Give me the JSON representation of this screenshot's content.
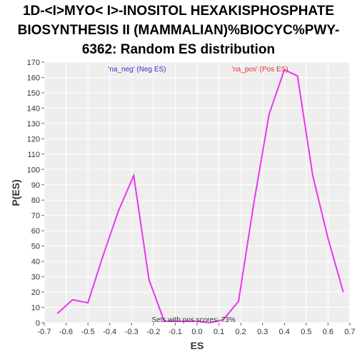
{
  "chart_data": {
    "type": "line",
    "title_lines": [
      "1D-<I>MYO< I>-INOSITOL HEXAKISPHOSPHATE",
      "BIOSYNTHESIS II (MAMMALIAN)%BIOCYC%PWY-",
      "6362: Random ES distribution"
    ],
    "xlabel": "ES",
    "ylabel": "P(ES)",
    "xlim": [
      -0.7,
      0.7
    ],
    "ylim": [
      0,
      170
    ],
    "xticks": [
      -0.7,
      -0.6,
      -0.5,
      -0.4,
      -0.3,
      -0.2,
      -0.1,
      0.0,
      0.1,
      0.2,
      0.3,
      0.4,
      0.5,
      0.6,
      0.7
    ],
    "xtick_labels": [
      "-0.7",
      "-0.6",
      "-0.5",
      "-0.4",
      "-0.3",
      "-0.2",
      "-0.1",
      "0.0",
      "0.1",
      "0.2",
      "0.3",
      "0.4",
      "0.5",
      "0.6",
      "0.7"
    ],
    "yticks": [
      0,
      10,
      20,
      30,
      40,
      50,
      60,
      70,
      80,
      90,
      100,
      110,
      120,
      130,
      140,
      150,
      160,
      170
    ],
    "grid": true,
    "line_color": "#ee33ee",
    "series": [
      {
        "x": [
          -0.64,
          -0.57,
          -0.5,
          -0.43,
          -0.36,
          -0.29,
          -0.22,
          -0.15,
          -0.08,
          -0.01,
          0.06,
          0.12,
          0.19,
          0.26,
          0.33,
          0.4,
          0.46,
          0.53,
          0.6,
          0.67
        ],
        "values": [
          6,
          15,
          13,
          44,
          73,
          96,
          28,
          1,
          1,
          1,
          0,
          2,
          14,
          78,
          136,
          165,
          161,
          96,
          55,
          20
        ]
      }
    ],
    "annotations": [
      {
        "text": "'na_neg' (Neg ES)",
        "color": "#3333cc"
      },
      {
        "text": "'na_pos' (Pos ES)",
        "color": "#dd3333"
      },
      {
        "text": "Sets with pos scores: 73%",
        "color": "#333333"
      }
    ]
  }
}
